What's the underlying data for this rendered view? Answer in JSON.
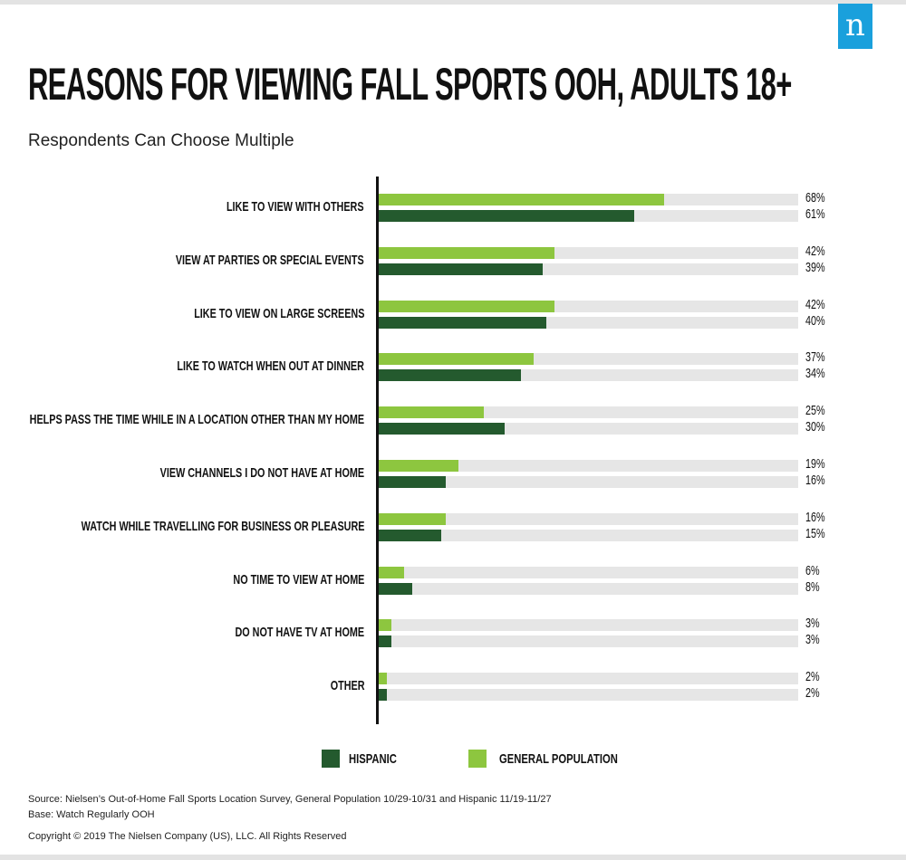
{
  "logo": "n",
  "chart_data": {
    "type": "bar",
    "orientation": "horizontal",
    "title": "REASONS FOR VIEWING FALL SPORTS OOH, ADULTS 18+",
    "subtitle": "Respondents Can Choose Multiple",
    "categories": [
      "LIKE TO VIEW WITH OTHERS",
      "VIEW AT PARTIES OR SPECIAL EVENTS",
      "LIKE TO VIEW ON LARGE SCREENS",
      "LIKE TO WATCH WHEN OUT AT DINNER",
      "HELPS PASS THE TIME WHILE IN A LOCATION OTHER THAN MY HOME",
      "VIEW CHANNELS I DO NOT HAVE AT HOME",
      "WATCH WHILE TRAVELLING FOR BUSINESS OR PLEASURE",
      "NO TIME TO VIEW AT HOME",
      "DO NOT HAVE TV AT HOME",
      "OTHER"
    ],
    "series": [
      {
        "name": "GENERAL POPULATION",
        "color": "#8dc63f",
        "values": [
          68,
          42,
          42,
          37,
          25,
          19,
          16,
          6,
          3,
          2
        ]
      },
      {
        "name": "HISPANIC",
        "color": "#245a2e",
        "values": [
          61,
          39,
          40,
          34,
          30,
          16,
          15,
          8,
          3,
          2
        ]
      }
    ],
    "xlim": [
      0,
      100
    ],
    "value_suffix": "%",
    "track_color": "#e6e6e6",
    "legend": [
      {
        "name": "HISPANIC",
        "color": "#245a2e"
      },
      {
        "name": "GENERAL POPULATION",
        "color": "#8dc63f"
      }
    ],
    "legend_position": "bottom"
  },
  "footer": {
    "source": "Source: Nielsen’s Out-of-Home Fall Sports Location Survey, General Population 10/29-10/31 and Hispanic 11/19-11/27",
    "base": "Base: Watch Regularly OOH",
    "copyright": "Copyright © 2019 The Nielsen Company (US), LLC. All Rights Reserved"
  }
}
